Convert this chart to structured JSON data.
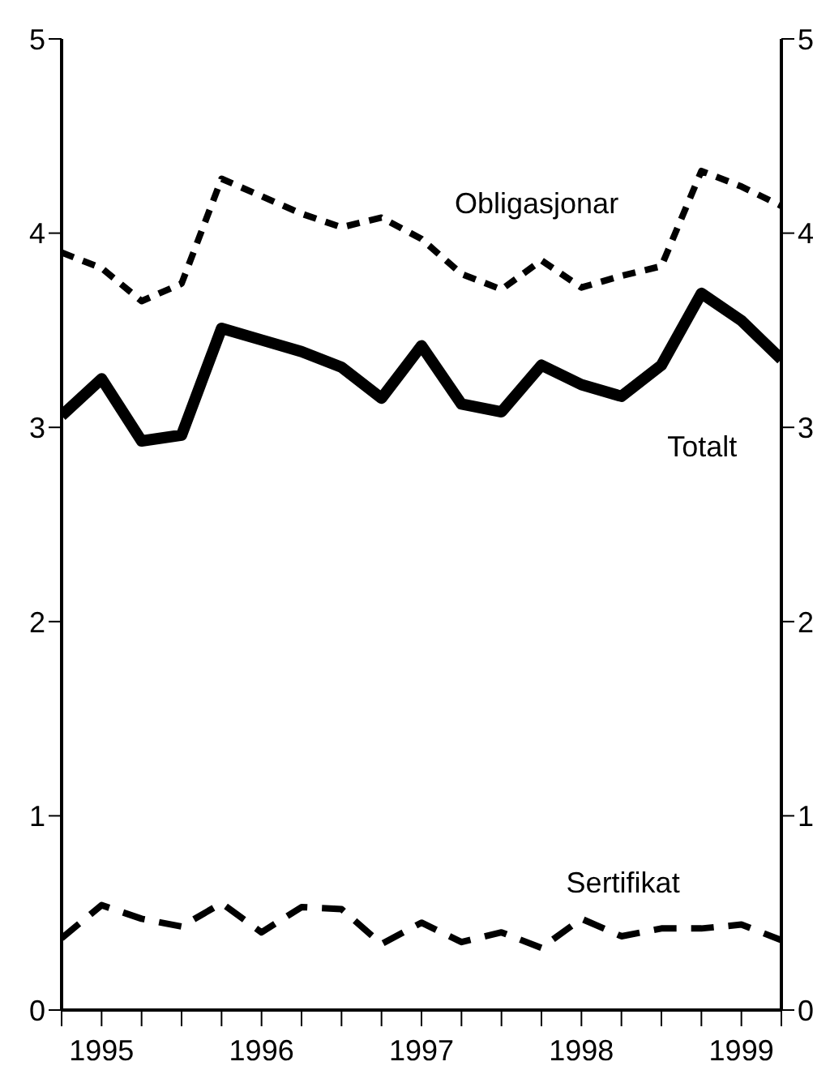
{
  "chart_data": {
    "type": "line",
    "x": [
      1994.75,
      1995,
      1995.25,
      1995.5,
      1995.75,
      1996,
      1996.25,
      1996.5,
      1996.75,
      1997,
      1997.25,
      1997.5,
      1997.75,
      1998,
      1998.25,
      1998.5,
      1998.75,
      1999,
      1999.25
    ],
    "series": [
      {
        "name": "Obligasjonar",
        "color": "#000000",
        "line_style": "dashed",
        "values": [
          3.9,
          3.82,
          3.65,
          3.74,
          4.28,
          4.19,
          4.1,
          4.03,
          4.08,
          3.97,
          3.79,
          3.71,
          3.86,
          3.72,
          3.78,
          3.83,
          4.32,
          4.24,
          4.14
        ]
      },
      {
        "name": "Totalt",
        "color": "#000000",
        "line_style": "solid",
        "values": [
          3.06,
          3.25,
          2.93,
          2.96,
          3.51,
          3.45,
          3.39,
          3.31,
          3.15,
          3.42,
          3.12,
          3.08,
          3.32,
          3.22,
          3.16,
          3.32,
          3.69,
          3.55,
          3.35
        ]
      },
      {
        "name": "Sertifikat",
        "color": "#000000",
        "line_style": "dashed",
        "values": [
          0.37,
          0.54,
          0.47,
          0.43,
          0.55,
          0.4,
          0.53,
          0.52,
          0.34,
          0.45,
          0.35,
          0.4,
          0.32,
          0.47,
          0.38,
          0.42,
          0.42,
          0.44,
          0.36
        ]
      }
    ],
    "xlim": [
      1994.75,
      1999.25
    ],
    "xticks": [
      {
        "value": 1994.75,
        "label": null
      },
      1995,
      {
        "value": 1995.25,
        "label": null
      },
      {
        "value": 1995.5,
        "label": null
      },
      {
        "value": 1995.75,
        "label": null
      },
      1996,
      {
        "value": 1996.25,
        "label": null
      },
      {
        "value": 1996.5,
        "label": null
      },
      {
        "value": 1996.75,
        "label": null
      },
      1997,
      {
        "value": 1997.25,
        "label": null
      },
      {
        "value": 1997.5,
        "label": null
      },
      {
        "value": 1997.75,
        "label": null
      },
      1998,
      {
        "value": 1998.25,
        "label": null
      },
      {
        "value": 1998.5,
        "label": null
      },
      {
        "value": 1998.75,
        "label": null
      },
      1999,
      {
        "value": 1999.25,
        "label": null
      }
    ],
    "ylim": [
      0,
      5
    ],
    "yticks": [
      0,
      1,
      2,
      3,
      4,
      5
    ],
    "y2lim": [
      0,
      5
    ],
    "y2ticks": [
      0,
      1,
      2,
      3,
      4,
      5
    ],
    "marker": "none"
  }
}
